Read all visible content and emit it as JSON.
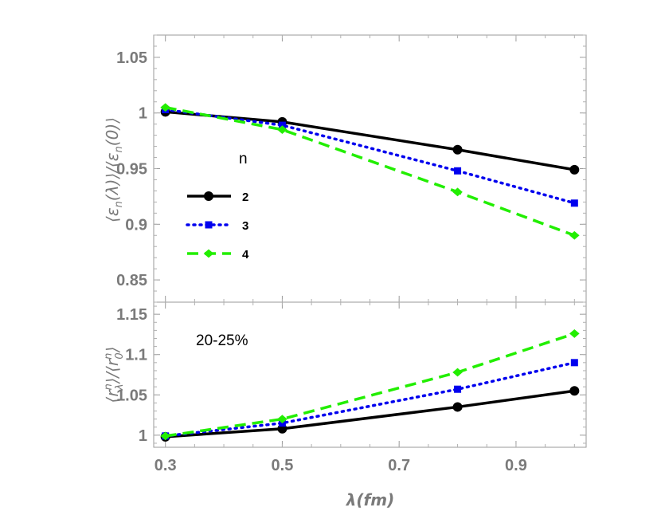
{
  "chart_data": [
    {
      "type": "line",
      "panel": "top",
      "x": [
        0.3,
        0.5,
        0.8,
        1.0
      ],
      "series": [
        {
          "name": "2",
          "values": [
            1.001,
            0.992,
            0.967,
            0.949
          ],
          "color": "#000000",
          "style": "solid",
          "marker": "circle"
        },
        {
          "name": "3",
          "values": [
            1.003,
            0.989,
            0.948,
            0.919
          ],
          "color": "#0000ee",
          "style": "dotted",
          "marker": "square"
        },
        {
          "name": "4",
          "values": [
            1.005,
            0.985,
            0.929,
            0.89
          ],
          "color": "#22ee00",
          "style": "dashed",
          "marker": "diamond"
        }
      ],
      "ylabel": "⟨ε_n(λ)⟩/⟨ε_n(0)⟩",
      "ylim": [
        0.83,
        1.07
      ],
      "yticks": [
        0.85,
        0.9,
        0.95,
        1,
        1.05
      ],
      "ytick_labels": [
        "0.85",
        "0.9",
        "0.95",
        "1",
        "1.05"
      ],
      "legend_title": "n",
      "legend_position": "center-left"
    },
    {
      "type": "line",
      "panel": "bottom",
      "x": [
        0.3,
        0.5,
        0.8,
        1.0
      ],
      "series": [
        {
          "name": "2",
          "values": [
            0.998,
            1.008,
            1.035,
            1.055
          ],
          "color": "#000000",
          "style": "solid",
          "marker": "circle"
        },
        {
          "name": "3",
          "values": [
            0.999,
            1.015,
            1.057,
            1.09
          ],
          "color": "#0000ee",
          "style": "dotted",
          "marker": "square"
        },
        {
          "name": "4",
          "values": [
            0.999,
            1.02,
            1.078,
            1.126
          ],
          "color": "#22ee00",
          "style": "dashed",
          "marker": "diamond"
        }
      ],
      "ylabel": "⟨r_λ^n⟩/⟨r_0^n⟩",
      "ylim": [
        0.985,
        1.165
      ],
      "yticks": [
        1,
        1.05,
        1.1,
        1.15
      ],
      "ytick_labels": [
        "1",
        "1.05",
        "1.1",
        "1.15"
      ],
      "annotation": "20-25%",
      "xlabel": "λ(fm)",
      "xlim": [
        0.28,
        1.02
      ],
      "xticks": [
        0.3,
        0.5,
        0.7,
        0.9
      ],
      "xtick_labels": [
        "0.3",
        "0.5",
        "0.7",
        "0.9"
      ]
    }
  ]
}
